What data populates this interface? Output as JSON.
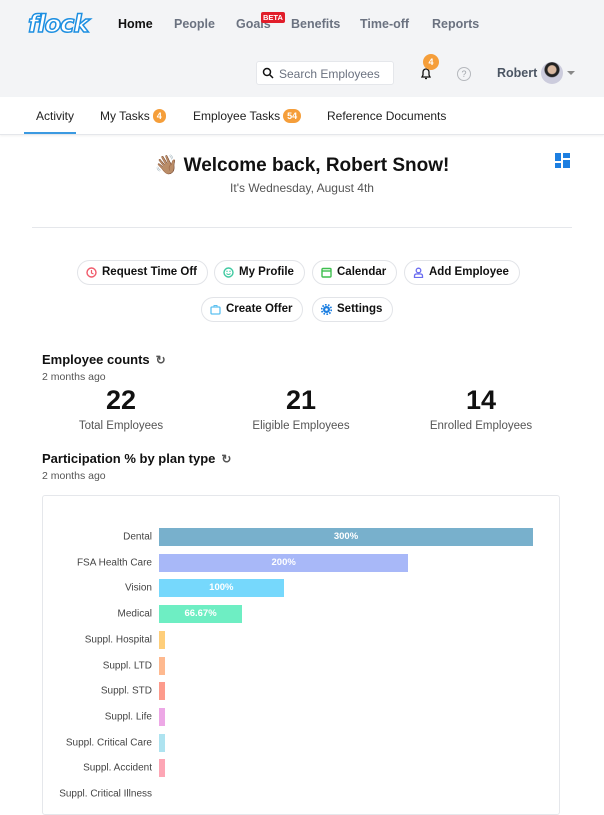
{
  "header": {
    "logo": "flock",
    "nav": [
      "Home",
      "People",
      "Goals",
      "Benefits",
      "Time-off",
      "Reports"
    ],
    "active_nav": "Home",
    "beta_badge": "BETA",
    "search_placeholder": "Search Employees",
    "notifications": "4",
    "help": "?",
    "user": "Robert"
  },
  "tabs": [
    {
      "label": "Activity",
      "active": true
    },
    {
      "label": "My Tasks",
      "badge": "4"
    },
    {
      "label": "Employee Tasks",
      "badge": "54"
    },
    {
      "label": "Reference Documents"
    }
  ],
  "welcome": {
    "emoji": "👋🏽",
    "title": "Welcome back, Robert Snow!",
    "date": "It's Wednesday, August 4th"
  },
  "actions": [
    {
      "label": "Request Time Off",
      "icon": "clock-icon",
      "color": "#f05a6a"
    },
    {
      "label": "My Profile",
      "icon": "smiley-icon",
      "color": "#3ec9a0"
    },
    {
      "label": "Calendar",
      "icon": "calendar-icon",
      "color": "#3fbf4f"
    },
    {
      "label": "Add Employee",
      "icon": "user-icon",
      "color": "#6a6cf0"
    },
    {
      "label": "Create Offer",
      "icon": "briefcase-icon",
      "color": "#5cc0f0"
    },
    {
      "label": "Settings",
      "icon": "gear-icon",
      "color": "#1d7fe1"
    }
  ],
  "employee_counts": {
    "title": "Employee counts",
    "updated": "2 months ago",
    "stats": [
      {
        "value": "22",
        "label": "Total Employees"
      },
      {
        "value": "21",
        "label": "Eligible Employees"
      },
      {
        "value": "14",
        "label": "Enrolled Employees"
      }
    ]
  },
  "participation": {
    "title": "Participation % by plan type",
    "updated": "2 months ago"
  },
  "chart_data": {
    "type": "bar",
    "orientation": "horizontal",
    "title": "",
    "xlim": [
      0,
      300
    ],
    "grid": false,
    "categories": [
      "Dental",
      "FSA Health Care",
      "Vision",
      "Medical",
      "Suppl. Hospital",
      "Suppl. LTD",
      "Suppl. STD",
      "Suppl. Life",
      "Suppl. Critical Care",
      "Suppl. Accident",
      "Suppl. Critical Illness"
    ],
    "values": [
      300,
      200,
      100,
      66.67,
      5,
      5,
      5,
      4,
      4,
      4,
      0
    ],
    "data_labels": [
      "300%",
      "200%",
      "100%",
      "66.67%",
      "",
      "",
      "",
      "",
      "",
      "",
      ""
    ],
    "colors": [
      "#78b0cc",
      "#a8b8f8",
      "#76d8fc",
      "#6eeec3",
      "#fece7a",
      "#feb98f",
      "#fd9b8c",
      "#eda8e6",
      "#aee3f0",
      "#fda6b5",
      "#cccccc"
    ]
  }
}
